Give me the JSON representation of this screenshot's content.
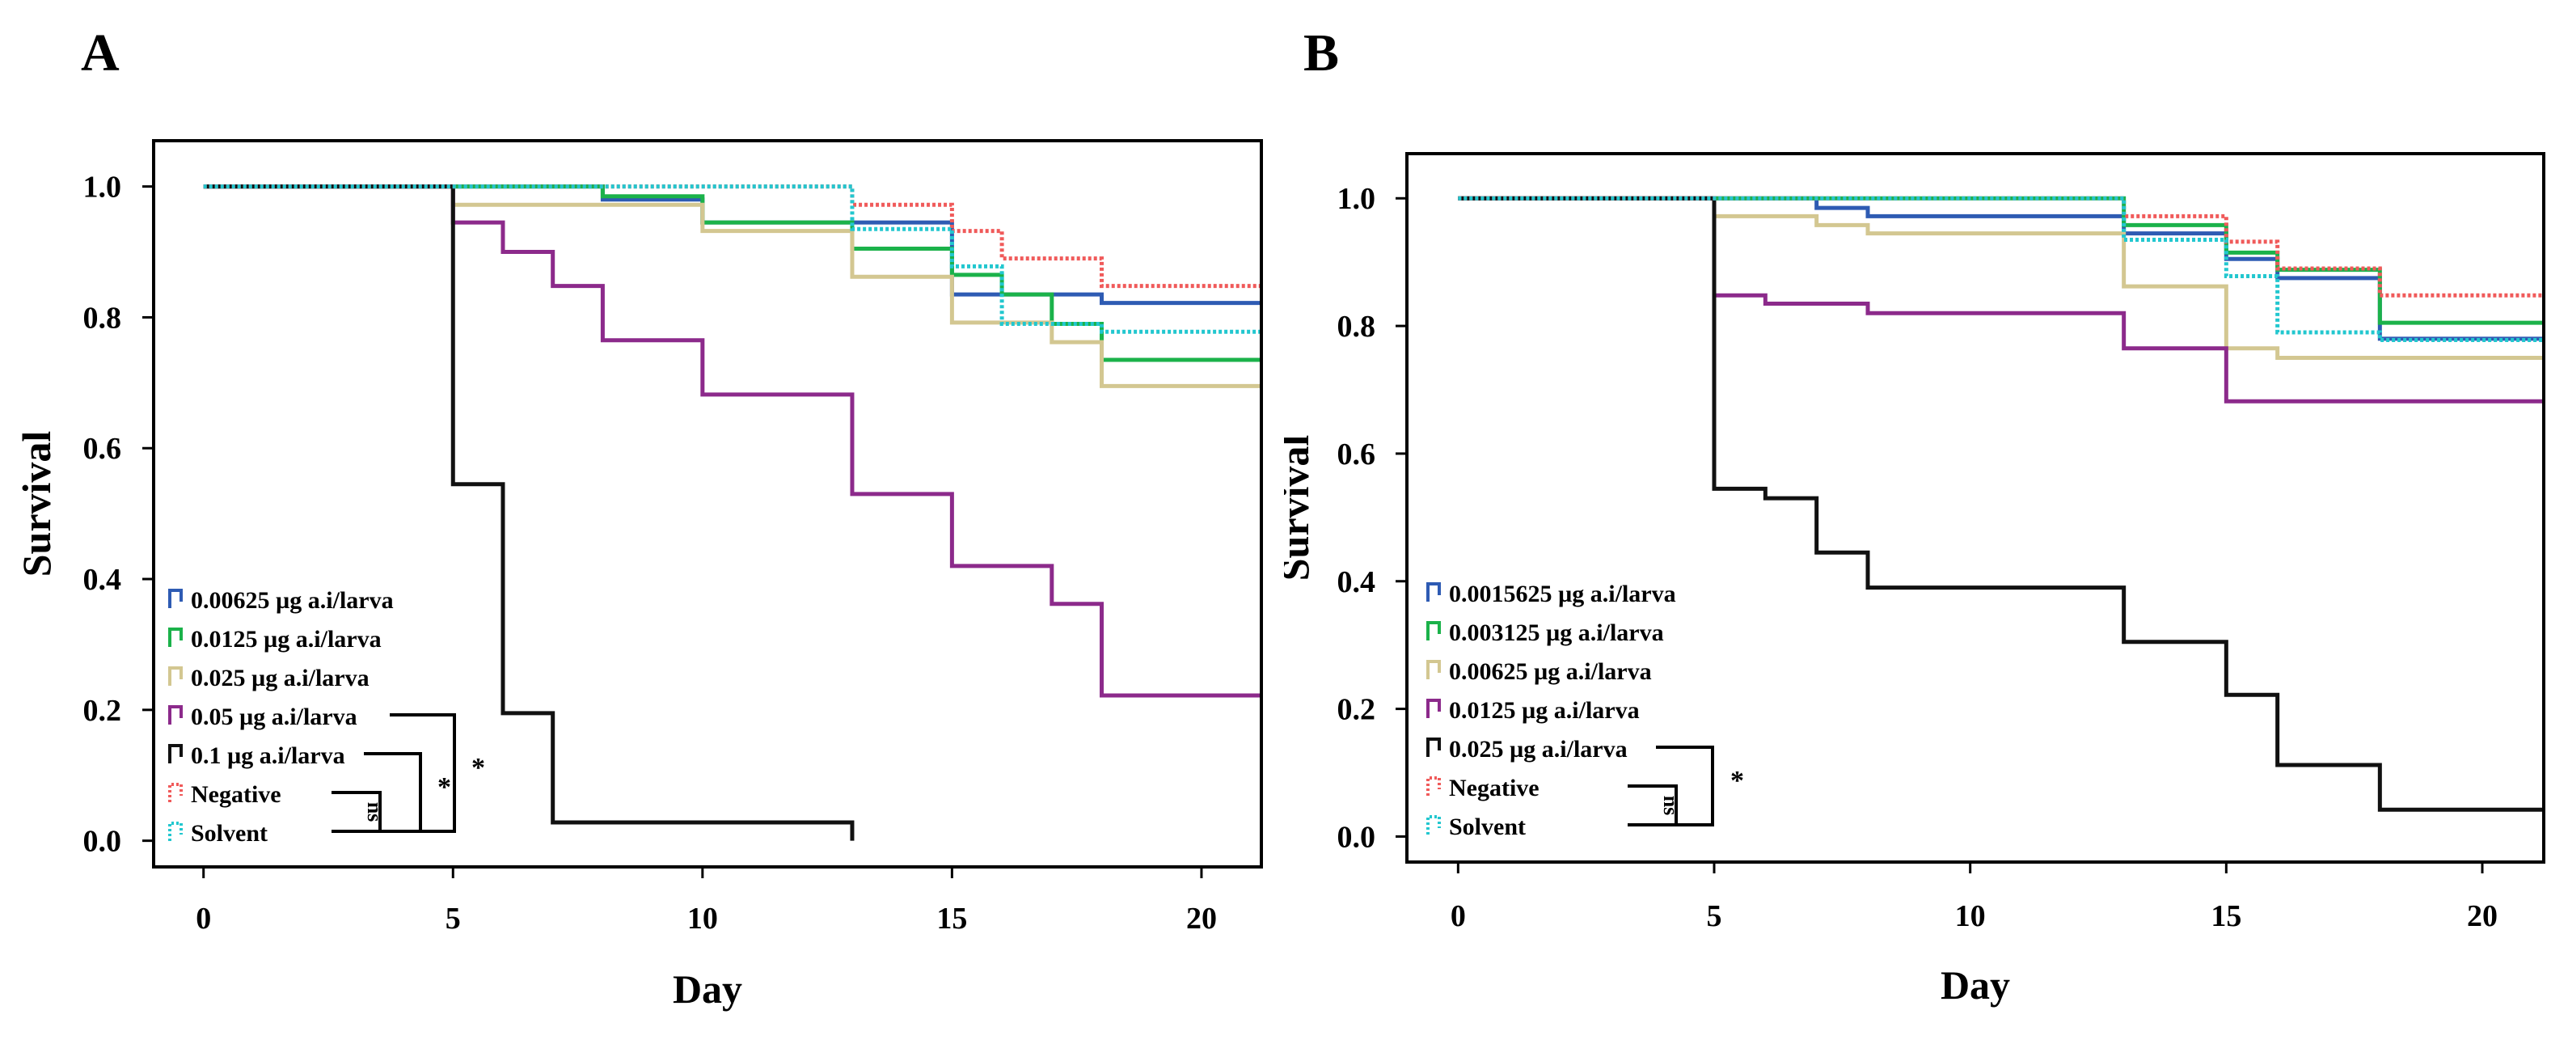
{
  "chart_data": [
    {
      "panel": "A",
      "type": "line",
      "xlabel": "Day",
      "ylabel": "Survival",
      "xlim": [
        -1,
        21.2
      ],
      "ylim": [
        -0.04,
        1.07
      ],
      "xticks": [
        0,
        5,
        10,
        15,
        20
      ],
      "yticks": [
        "0.0",
        "0.2",
        "0.4",
        "0.6",
        "0.8",
        "1.0"
      ],
      "legend_position": "bottom-left",
      "series": [
        {
          "name": "0.00625 µg a.i/larva",
          "color": "#2e5bb3",
          "dash": "solid",
          "x": [
            0,
            5,
            8,
            10,
            13,
            15,
            18,
            21.2
          ],
          "y": [
            1.0,
            1.0,
            0.98,
            0.945,
            0.945,
            0.835,
            0.822,
            0.822
          ]
        },
        {
          "name": "0.0125 µg a.i/larva",
          "color": "#1bb24a",
          "dash": "solid",
          "x": [
            0,
            5,
            8,
            10,
            13,
            15,
            16,
            17,
            18,
            21.2
          ],
          "y": [
            1.0,
            1.0,
            0.985,
            0.945,
            0.905,
            0.865,
            0.835,
            0.79,
            0.735,
            0.735
          ]
        },
        {
          "name": "0.025 µg a.i/larva",
          "color": "#d3c791",
          "dash": "solid",
          "x": [
            0,
            5,
            10,
            13,
            15,
            17,
            18,
            21.2
          ],
          "y": [
            1.0,
            0.972,
            0.932,
            0.862,
            0.792,
            0.762,
            0.695,
            0.695
          ]
        },
        {
          "name": "0.05 µg a.i/larva",
          "color": "#8c2a8b",
          "dash": "solid",
          "x": [
            0,
            5,
            6,
            7,
            8,
            10,
            13,
            15,
            17,
            18,
            21.2
          ],
          "y": [
            1.0,
            0.945,
            0.9,
            0.848,
            0.765,
            0.682,
            0.53,
            0.42,
            0.362,
            0.222,
            0.222
          ]
        },
        {
          "name": "0.1 µg a.i/larva",
          "color": "#111111",
          "dash": "solid",
          "x": [
            0,
            5,
            6,
            7,
            13
          ],
          "y": [
            1.0,
            0.545,
            0.195,
            0.028,
            0.028
          ],
          "end_drop_to": 0.0
        },
        {
          "name": "Negative",
          "color": "#f05a5a",
          "dash": "dotted",
          "x": [
            0,
            13,
            15,
            16,
            18,
            21.2
          ],
          "y": [
            1.0,
            0.972,
            0.932,
            0.89,
            0.848,
            0.848
          ]
        },
        {
          "name": "Solvent",
          "color": "#22c7cf",
          "dash": "dotted",
          "x": [
            0,
            13,
            15,
            16,
            18,
            21.2
          ],
          "y": [
            1.0,
            0.935,
            0.878,
            0.79,
            0.778,
            0.778
          ]
        }
      ],
      "significance": {
        "ns": "ns",
        "star": "*"
      }
    },
    {
      "panel": "B",
      "type": "line",
      "xlabel": "Day",
      "ylabel": "Survival",
      "xlim": [
        -1,
        21.2
      ],
      "ylim": [
        -0.04,
        1.07
      ],
      "xticks": [
        0,
        5,
        10,
        15,
        20
      ],
      "yticks": [
        "0.0",
        "0.2",
        "0.4",
        "0.6",
        "0.8",
        "1.0"
      ],
      "legend_position": "bottom-left",
      "series": [
        {
          "name": "0.0015625 µg a.i/larva",
          "color": "#2e5bb3",
          "dash": "solid",
          "x": [
            0,
            5,
            7,
            8,
            13,
            15,
            16,
            18,
            21.2
          ],
          "y": [
            1.0,
            1.0,
            0.985,
            0.972,
            0.945,
            0.905,
            0.875,
            0.78,
            0.78
          ]
        },
        {
          "name": "0.003125 µg a.i/larva",
          "color": "#1bb24a",
          "dash": "solid",
          "x": [
            0,
            5,
            13,
            15,
            16,
            18,
            21.2
          ],
          "y": [
            1.0,
            1.0,
            0.958,
            0.915,
            0.888,
            0.805,
            0.805
          ]
        },
        {
          "name": "0.00625  µg a.i/larva",
          "color": "#d3c791",
          "dash": "solid",
          "x": [
            0,
            5,
            7,
            8,
            13,
            15,
            16,
            21.2
          ],
          "y": [
            1.0,
            0.972,
            0.958,
            0.945,
            0.862,
            0.765,
            0.75,
            0.75
          ]
        },
        {
          "name": "0.0125 µg a.i/larva",
          "color": "#8c2a8b",
          "dash": "solid",
          "x": [
            0,
            5,
            6,
            8,
            13,
            15,
            21.2
          ],
          "y": [
            1.0,
            0.848,
            0.835,
            0.82,
            0.765,
            0.682,
            0.682
          ]
        },
        {
          "name": "0.025  µg a.i/larva",
          "color": "#111111",
          "dash": "solid",
          "x": [
            0,
            5,
            6,
            7,
            8,
            13,
            15,
            16,
            18,
            21.2
          ],
          "y": [
            1.0,
            0.545,
            0.53,
            0.445,
            0.39,
            0.305,
            0.222,
            0.112,
            0.042,
            0.042
          ]
        },
        {
          "name": "Negative",
          "color": "#f05a5a",
          "dash": "dotted",
          "x": [
            0,
            13,
            15,
            16,
            18,
            21.2
          ],
          "y": [
            1.0,
            0.972,
            0.932,
            0.89,
            0.848,
            0.848
          ]
        },
        {
          "name": "Solvent",
          "color": "#22c7cf",
          "dash": "dotted",
          "x": [
            0,
            13,
            15,
            16,
            18,
            21.2
          ],
          "y": [
            1.0,
            0.935,
            0.878,
            0.79,
            0.778,
            0.778
          ]
        }
      ],
      "significance": {
        "ns": "ns",
        "star": "*"
      }
    }
  ]
}
